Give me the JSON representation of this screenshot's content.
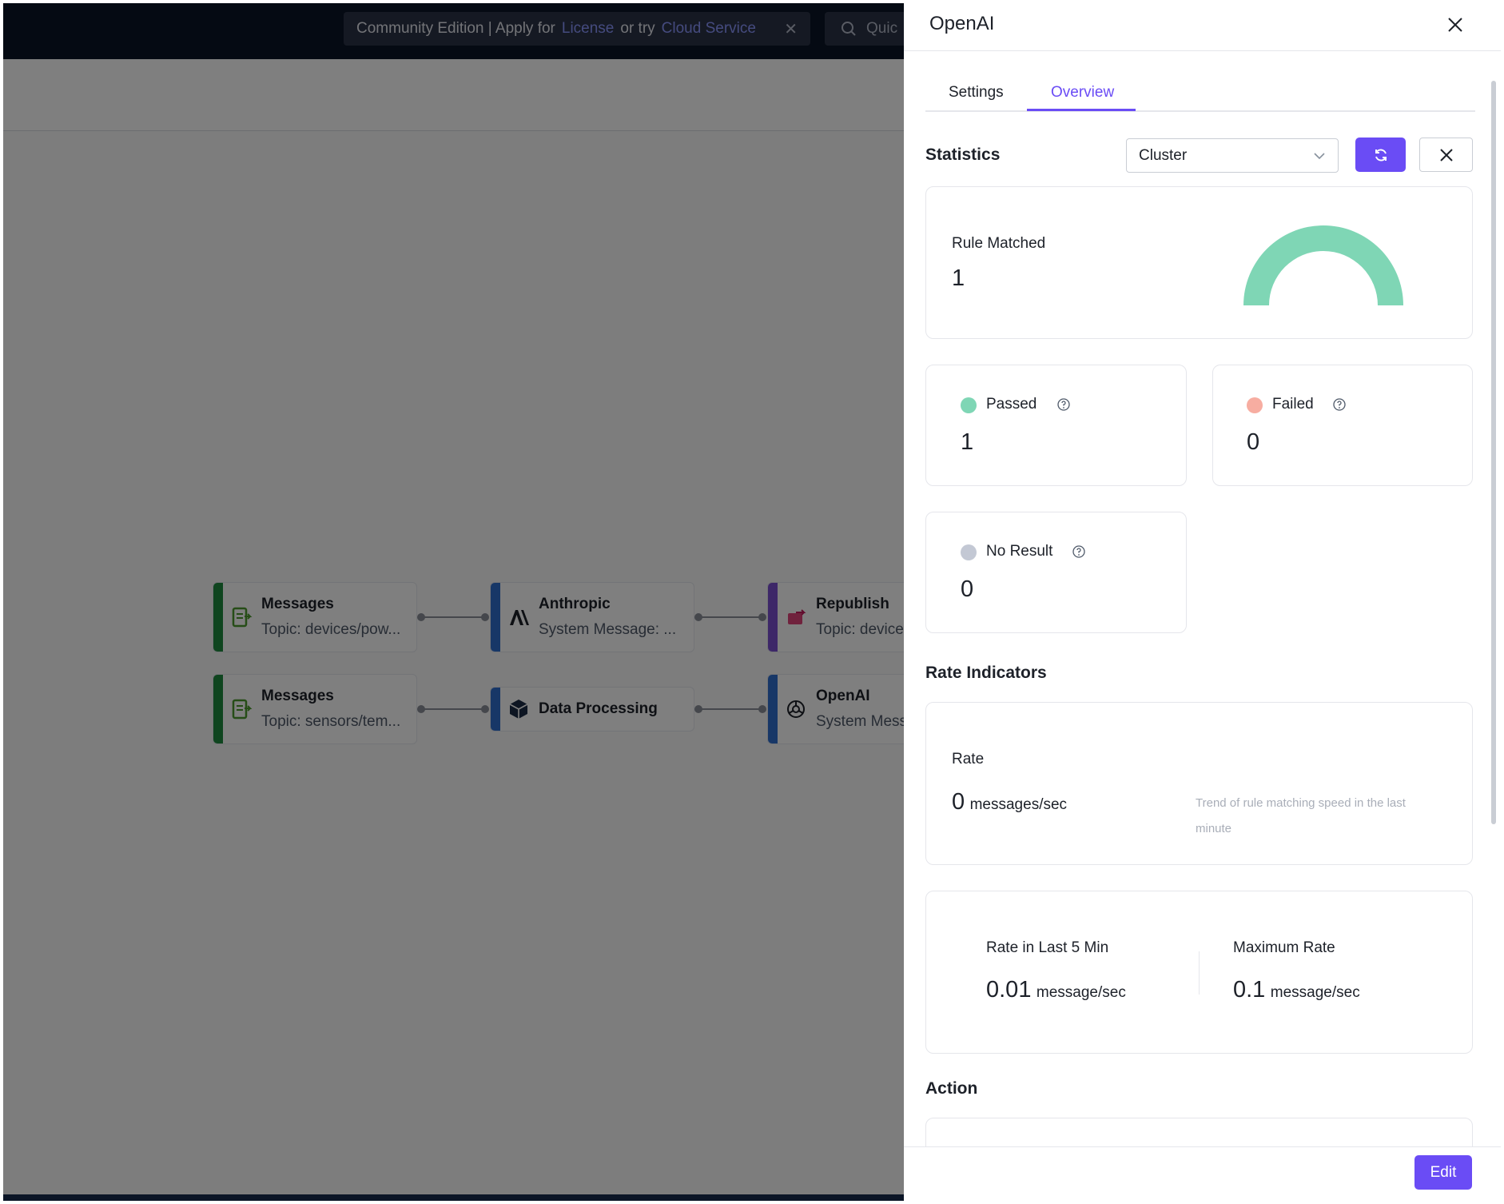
{
  "banner": {
    "text_prefix": "Community Edition | Apply for",
    "license_link": "License",
    "text_mid": "or try",
    "cloud_link": "Cloud Service"
  },
  "quick_search": {
    "placeholder": "Quic"
  },
  "flow": {
    "nodes": [
      {
        "title": "Messages",
        "subtitle": "Topic: devices/pow...",
        "color": "#1f8a3f"
      },
      {
        "title": "Anthropic",
        "subtitle": "System Message: ...",
        "color": "#2f6fcf"
      },
      {
        "title": "Republish",
        "subtitle": "Topic: devices",
        "color": "#7b4fd1"
      },
      {
        "title": "Messages",
        "subtitle": "Topic: sensors/tem...",
        "color": "#1f8a3f"
      },
      {
        "title": "Data Processing",
        "subtitle": "",
        "color": "#2f6fcf"
      },
      {
        "title": "OpenAI",
        "subtitle": "System Mess",
        "color": "#2f6fcf"
      }
    ]
  },
  "drawer": {
    "title": "OpenAI",
    "tabs": [
      {
        "label": "Settings",
        "active": false
      },
      {
        "label": "Overview",
        "active": true
      }
    ],
    "statistics": {
      "title": "Statistics",
      "node_select": "Cluster",
      "rule_matched": {
        "label": "Rule Matched",
        "value": "1"
      },
      "passed": {
        "label": "Passed",
        "value": "1",
        "color": "#7fd6b5"
      },
      "failed": {
        "label": "Failed",
        "value": "0",
        "color": "#f7ada1"
      },
      "no_result": {
        "label": "No Result",
        "value": "0",
        "color": "#c3c8d4"
      }
    },
    "rate_indicators": {
      "title": "Rate Indicators",
      "rate": {
        "label": "Rate",
        "value": "0",
        "unit": "messages/sec",
        "hint": "Trend of rule matching speed in the last minute"
      },
      "last5": {
        "label": "Rate in Last 5 Min",
        "value": "0.01",
        "unit": "message/sec"
      },
      "max": {
        "label": "Maximum Rate",
        "value": "0.1",
        "unit": "message/sec"
      }
    },
    "action": {
      "title": "Action"
    },
    "edit_label": "Edit",
    "accent": "#6a4cf5"
  }
}
